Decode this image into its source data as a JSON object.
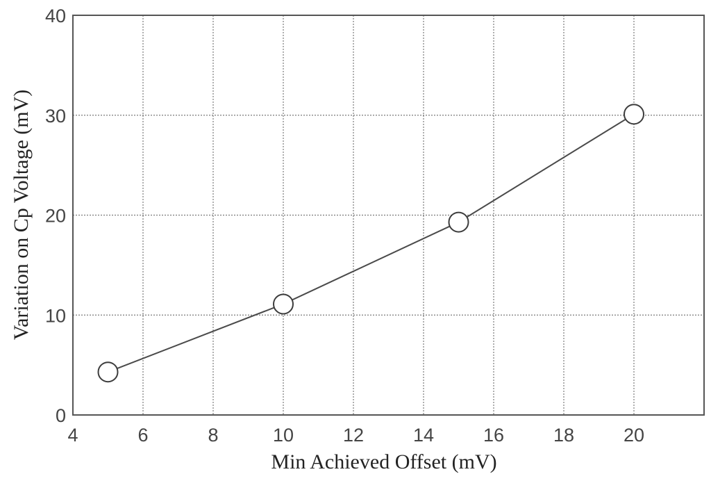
{
  "chart_data": {
    "type": "line",
    "title": "",
    "xlabel": "Min Achieved Offset (mV)",
    "ylabel": "Variation on  Cp  Voltage (mV)",
    "xlim": [
      4,
      22
    ],
    "ylim": [
      0,
      40
    ],
    "xticks": [
      4,
      6,
      8,
      10,
      12,
      14,
      16,
      18,
      20
    ],
    "yticks": [
      0,
      10,
      20,
      30,
      40
    ],
    "grid": true,
    "series": [
      {
        "marker": "open-circle",
        "color": "#444444",
        "points": [
          {
            "x": 5,
            "y": 4.3
          },
          {
            "x": 10,
            "y": 11.1
          },
          {
            "x": 15,
            "y": 19.3
          },
          {
            "x": 20,
            "y": 30.1
          }
        ]
      }
    ]
  }
}
